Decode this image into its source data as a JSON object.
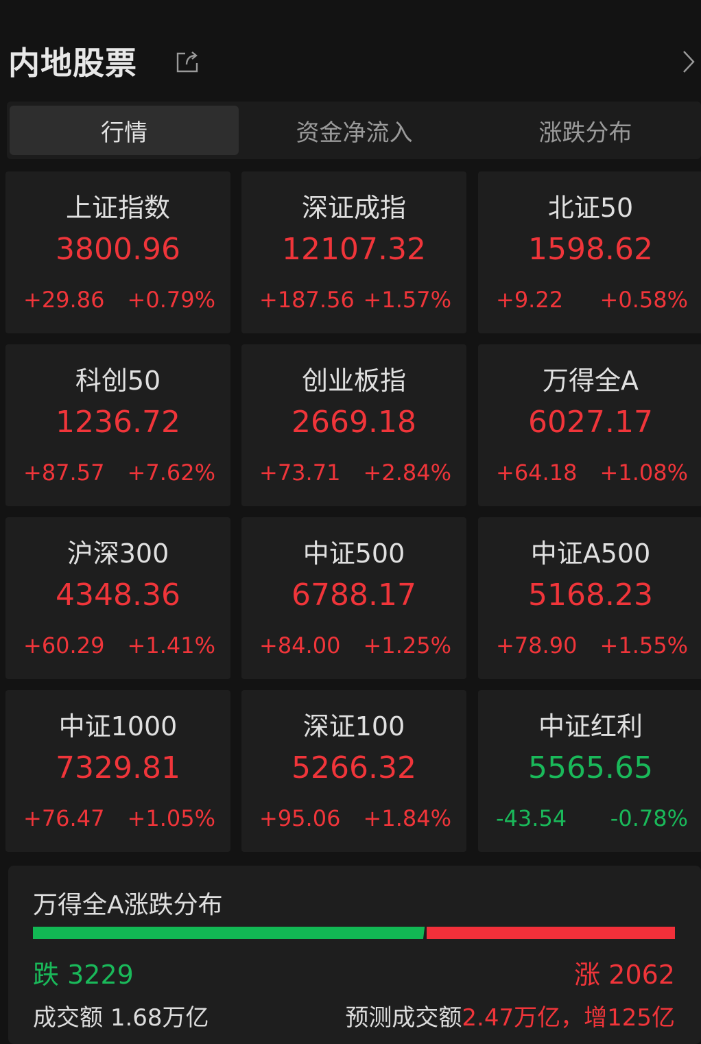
{
  "header": {
    "title": "内地股票",
    "share_icon": "share-icon",
    "chevron_icon": "chevron-right-icon"
  },
  "tabs": [
    {
      "label": "行情",
      "active": true
    },
    {
      "label": "资金净流入",
      "active": false
    },
    {
      "label": "涨跌分布",
      "active": false
    }
  ],
  "colors": {
    "up": "#f0353a",
    "down": "#1ab95a",
    "background": "#131313",
    "card": "#1e1e1e"
  },
  "indices": [
    {
      "name": "上证指数",
      "price": "3800.96",
      "change": "+29.86",
      "percent": "+0.79%",
      "direction": "up"
    },
    {
      "name": "深证成指",
      "price": "12107.32",
      "change": "+187.56",
      "percent": "+1.57%",
      "direction": "up"
    },
    {
      "name": "北证50",
      "price": "1598.62",
      "change": "+9.22",
      "percent": "+0.58%",
      "direction": "up"
    },
    {
      "name": "科创50",
      "price": "1236.72",
      "change": "+87.57",
      "percent": "+7.62%",
      "direction": "up"
    },
    {
      "name": "创业板指",
      "price": "2669.18",
      "change": "+73.71",
      "percent": "+2.84%",
      "direction": "up"
    },
    {
      "name": "万得全A",
      "price": "6027.17",
      "change": "+64.18",
      "percent": "+1.08%",
      "direction": "up"
    },
    {
      "name": "沪深300",
      "price": "4348.36",
      "change": "+60.29",
      "percent": "+1.41%",
      "direction": "up"
    },
    {
      "name": "中证500",
      "price": "6788.17",
      "change": "+84.00",
      "percent": "+1.25%",
      "direction": "up"
    },
    {
      "name": "中证A500",
      "price": "5168.23",
      "change": "+78.90",
      "percent": "+1.55%",
      "direction": "up"
    },
    {
      "name": "中证1000",
      "price": "7329.81",
      "change": "+76.47",
      "percent": "+1.05%",
      "direction": "up"
    },
    {
      "name": "深证100",
      "price": "5266.32",
      "change": "+95.06",
      "percent": "+1.84%",
      "direction": "up"
    },
    {
      "name": "中证红利",
      "price": "5565.65",
      "change": "-43.54",
      "percent": "-0.78%",
      "direction": "down"
    }
  ],
  "distribution": {
    "title": "万得全A涨跌分布",
    "fall_label": "跌",
    "fall_count": 3229,
    "rise_label": "涨",
    "rise_count": 2062,
    "volume_label": "成交额",
    "volume_value": "1.68万亿",
    "forecast_label": "预测成交额",
    "forecast_value": "2.47万亿，增125亿"
  }
}
